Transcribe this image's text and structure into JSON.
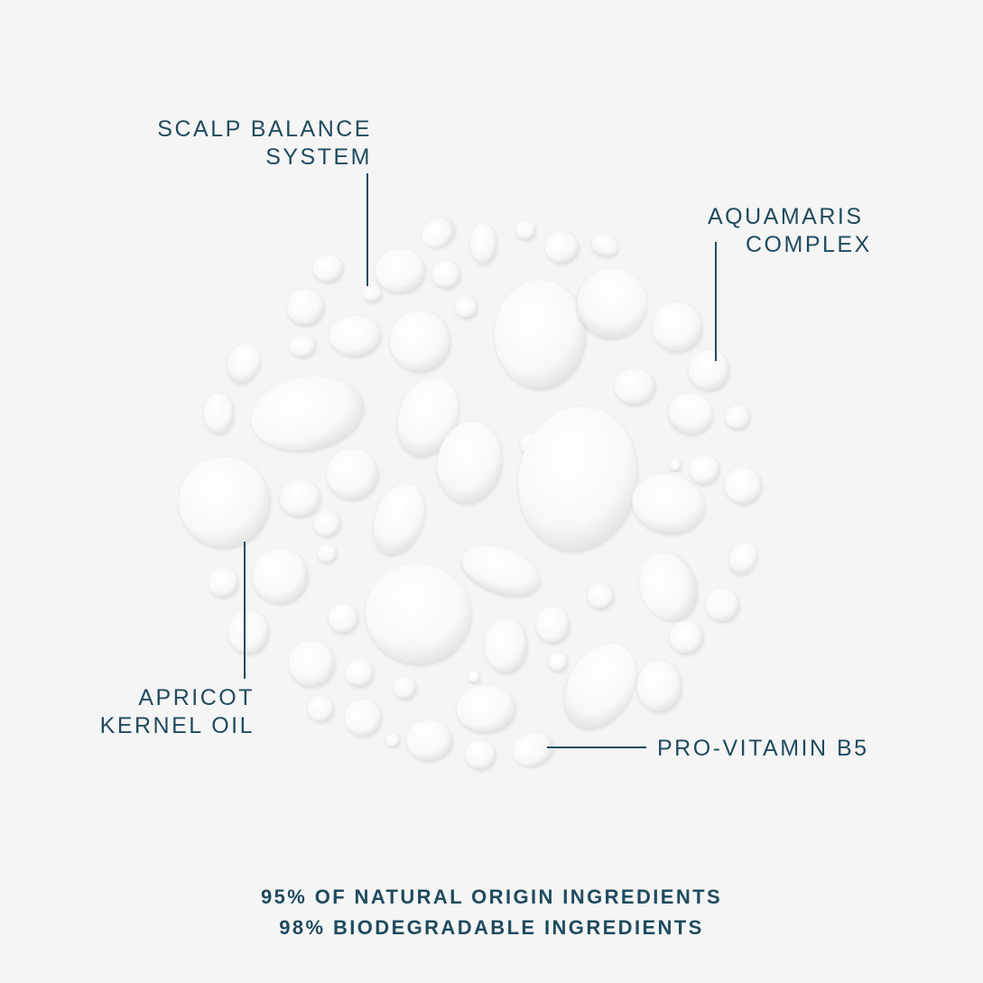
{
  "labels": {
    "scalp": [
      "SCALP BALANCE",
      "SYSTEM"
    ],
    "aquamaris": [
      "AQUAMARIS",
      "COMPLEX"
    ],
    "apricot": [
      "APRICOT",
      "KERNEL OIL"
    ],
    "provitamin": "PRO-VITAMIN B5"
  },
  "footer": {
    "line1": "95% OF NATURAL ORIGIN INGREDIENTS",
    "line2": "98% BIODEGRADABLE INGREDIENTS"
  },
  "colors": {
    "text": "#1f4b5f",
    "background": "#f5f5f5",
    "drops": "#ffffff"
  }
}
